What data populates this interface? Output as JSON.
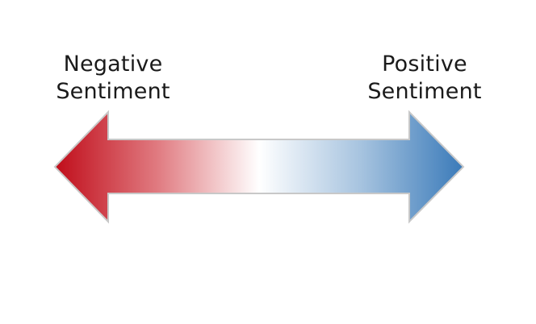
{
  "labels": {
    "negative": {
      "line1": "Negative",
      "line2": "Sentiment"
    },
    "positive": {
      "line1": "Positive",
      "line2": "Sentiment"
    }
  },
  "colors": {
    "negative": "#c00d1a",
    "neutral": "#ffffff",
    "positive": "#3a7ab9",
    "outline": "#c8c8c8"
  },
  "arrow": {
    "type": "double-headed",
    "icon": "double-arrow-gradient"
  }
}
